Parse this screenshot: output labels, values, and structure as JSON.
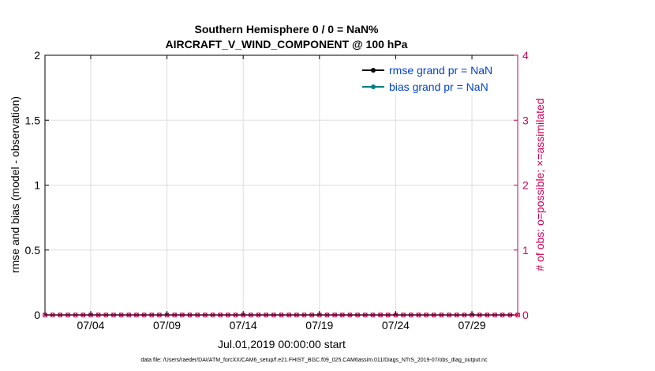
{
  "chart_data": {
    "type": "line",
    "title_line1": "Southern Hemisphere 0 / 0 = NaN%",
    "title_line2": "AIRCRAFT_V_WIND_COMPONENT @ 100 hPa",
    "xlabel": "Jul.01,2019 00:00:00 start",
    "ylabel_left": "rmse and bias (model - observation)",
    "ylabel_right": "# of obs: o=possible; ×=assimilated",
    "x_start": "2019-07-01",
    "x_end": "2019-08-01",
    "x_tick_labels": [
      "07/04",
      "07/09",
      "07/14",
      "07/19",
      "07/24",
      "07/29"
    ],
    "x_tick_dates": [
      "2019-07-04",
      "2019-07-09",
      "2019-07-14",
      "2019-07-19",
      "2019-07-24",
      "2019-07-29"
    ],
    "ylim_left": [
      0,
      2
    ],
    "y_ticks_left": [
      "0",
      "0.5",
      "1",
      "1.5",
      "2"
    ],
    "ylim_right": [
      0,
      4
    ],
    "y_ticks_right": [
      "0",
      "1",
      "2",
      "3",
      "4"
    ],
    "grid": true,
    "legend_position": "top-right",
    "series": [
      {
        "name": "rmse grand pr = NaN",
        "color": "#000000",
        "marker": "circle",
        "values": []
      },
      {
        "name": "bias grand pr = NaN",
        "color": "#008080",
        "marker": "circle",
        "values": []
      }
    ],
    "obs_counts": {
      "color": "#cc0055",
      "possible_marker": "o",
      "assimilated_marker": "x",
      "possible": [
        0,
        0,
        0,
        0,
        0,
        0,
        0,
        0,
        0,
        0,
        0,
        0,
        0,
        0,
        0,
        0,
        0,
        0,
        0,
        0,
        0,
        0,
        0,
        0,
        0,
        0,
        0,
        0,
        0,
        0,
        0,
        0,
        0,
        0,
        0,
        0,
        0,
        0,
        0,
        0,
        0,
        0,
        0,
        0,
        0,
        0,
        0,
        0,
        0,
        0,
        0,
        0,
        0,
        0,
        0,
        0,
        0,
        0,
        0,
        0,
        0,
        0,
        0
      ],
      "assimilated": [
        0,
        0,
        0,
        0,
        0,
        0,
        0,
        0,
        0,
        0,
        0,
        0,
        0,
        0,
        0,
        0,
        0,
        0,
        0,
        0,
        0,
        0,
        0,
        0,
        0,
        0,
        0,
        0,
        0,
        0,
        0,
        0,
        0,
        0,
        0,
        0,
        0,
        0,
        0,
        0,
        0,
        0,
        0,
        0,
        0,
        0,
        0,
        0,
        0,
        0,
        0,
        0,
        0,
        0,
        0,
        0,
        0,
        0,
        0,
        0,
        0,
        0,
        0
      ]
    },
    "footnote": "data file: /Users/raeder/DAI/ATM_forcXX/CAM6_setup/f.e21.FHIST_BGC.f09_025.CAM6assim.011/Diags_NTrS_2019-07/obs_diag_output.nc",
    "colors": {
      "left_axis": "#000000",
      "right_axis": "#cc0055",
      "legend_text": "#0044cc",
      "grid": "#dddddd"
    }
  }
}
